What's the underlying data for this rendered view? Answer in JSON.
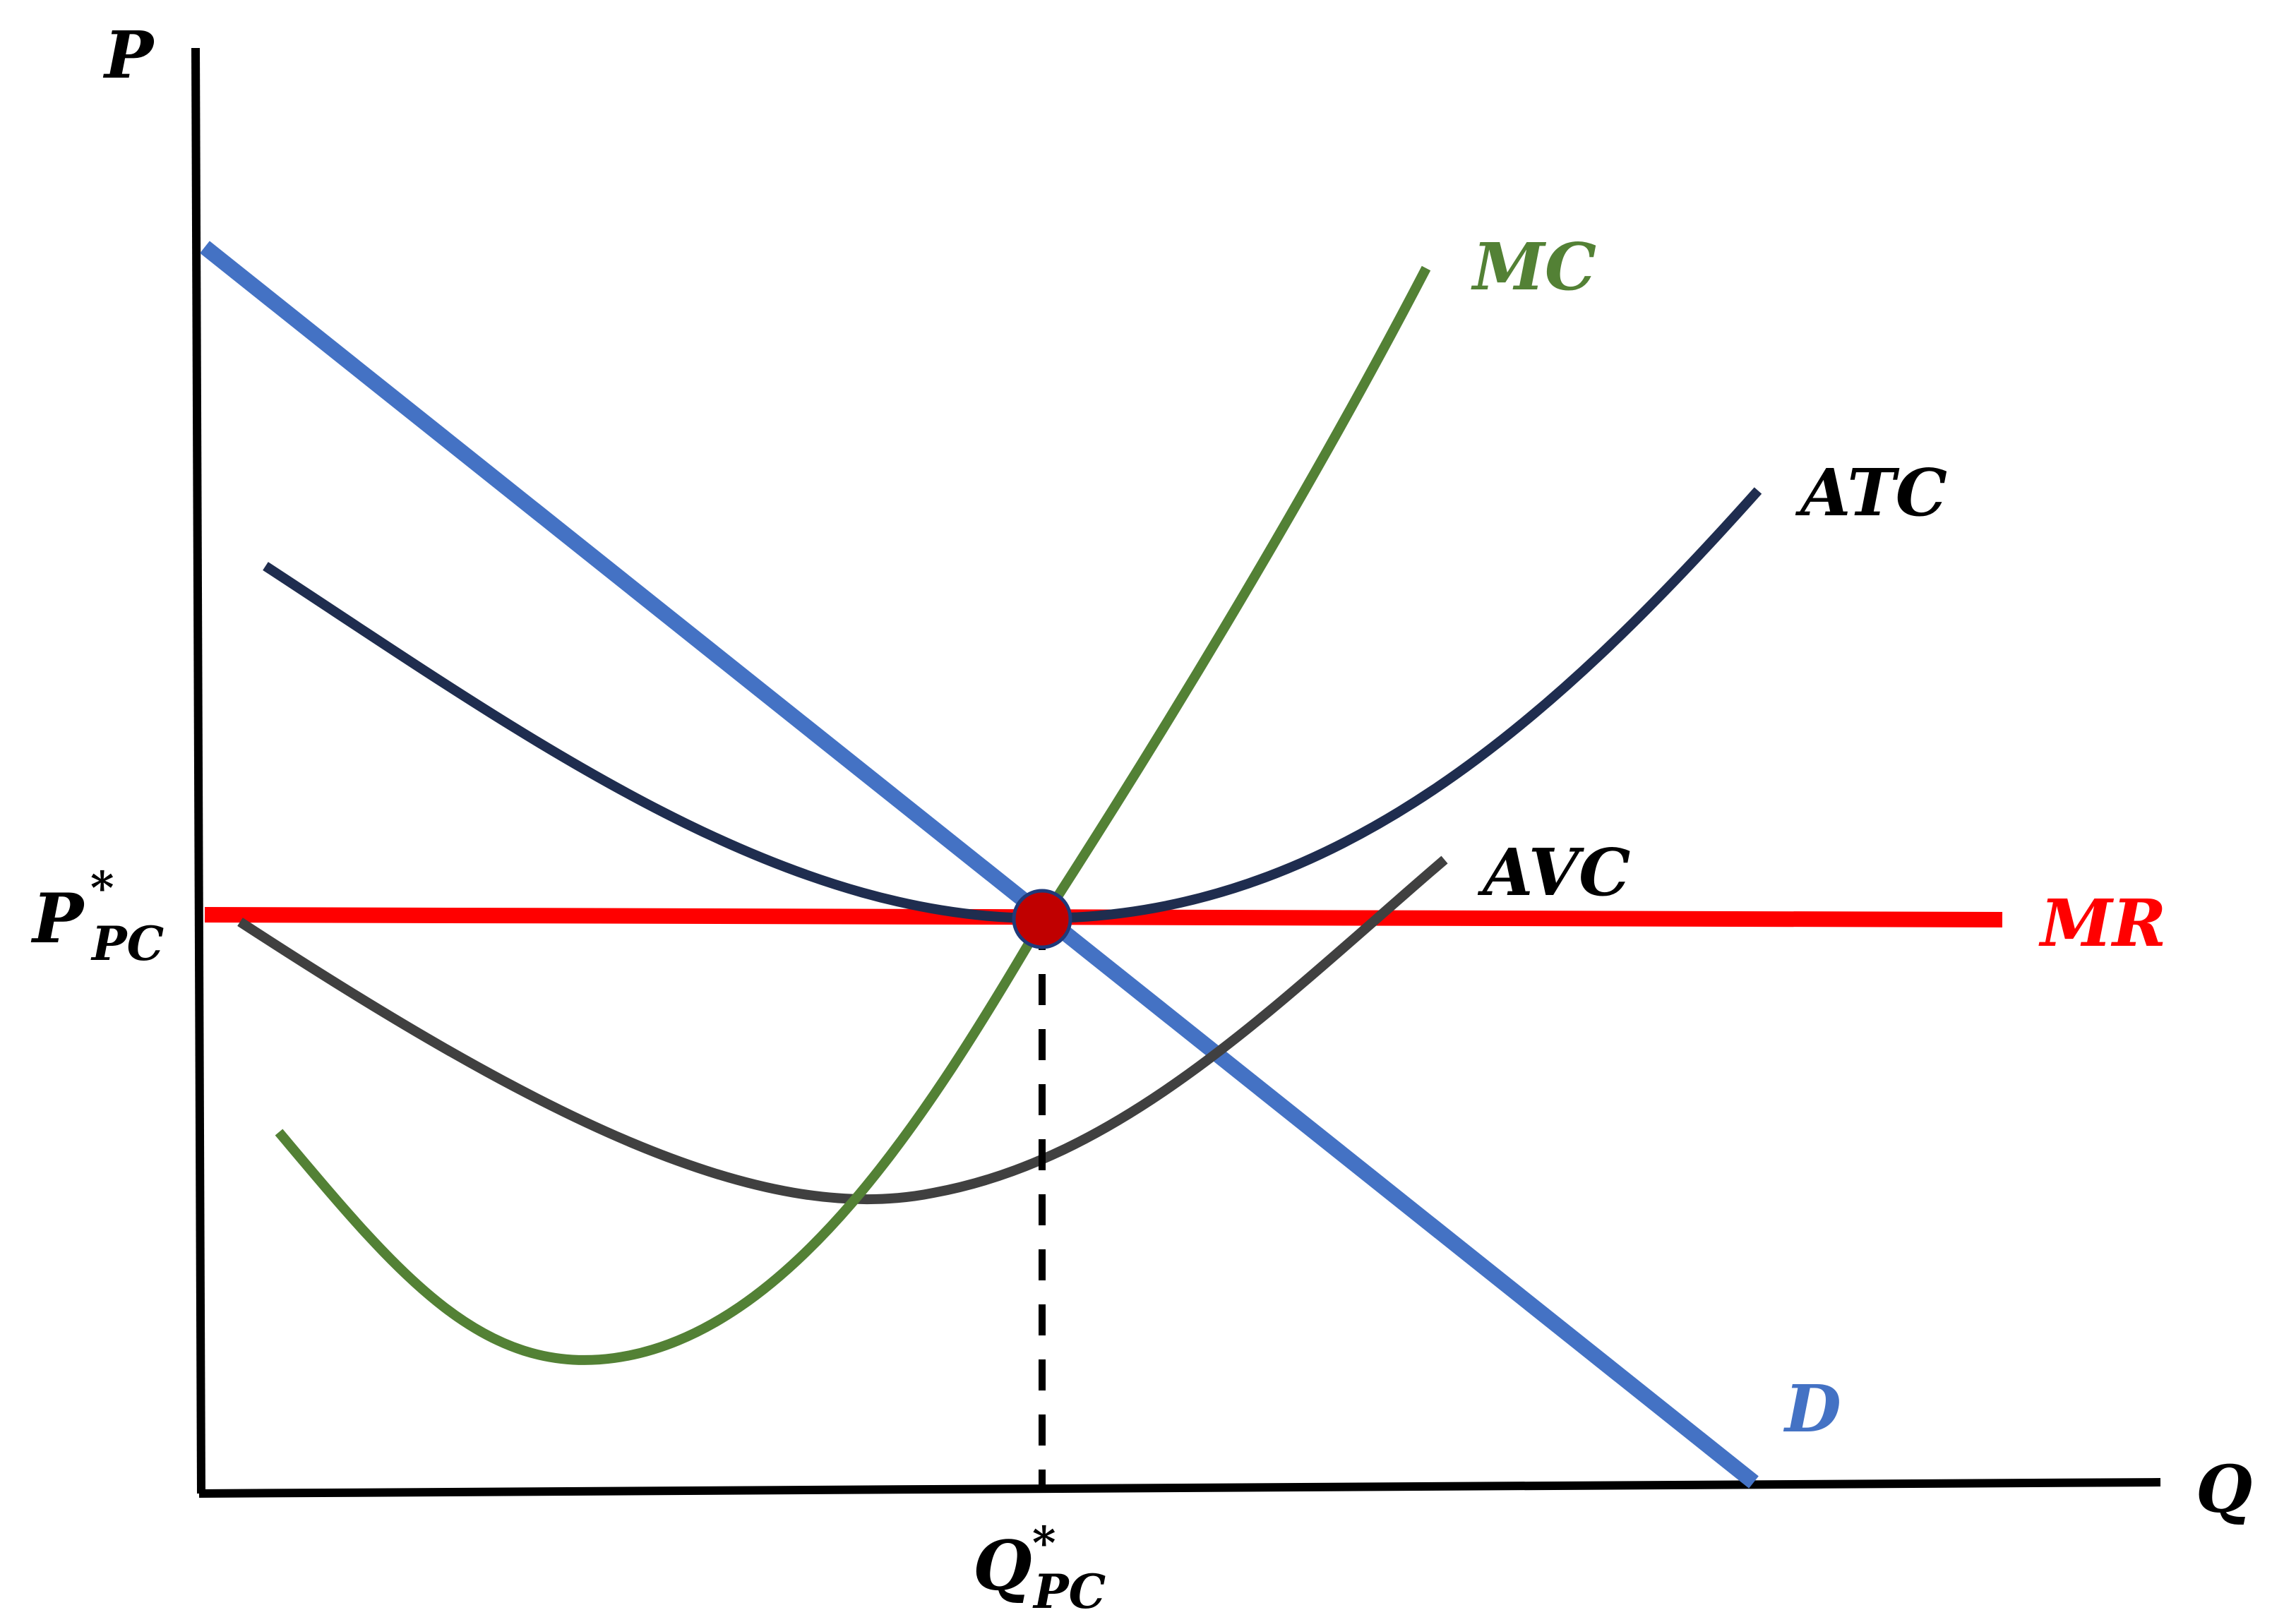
{
  "axes": {
    "y_label": "P",
    "x_label": "Q"
  },
  "curves": {
    "mc": {
      "label": "MC",
      "color": "#538135"
    },
    "atc": {
      "label": "ATC",
      "color": "#1f2d4f"
    },
    "avc": {
      "label": "AVC",
      "color": "#404040"
    },
    "mr": {
      "label": "MR",
      "color": "#ff0000"
    },
    "demand": {
      "label": "D",
      "color": "#4472c4"
    }
  },
  "equilibrium": {
    "price_label": {
      "main": "P",
      "sup": "*",
      "sub": "PC"
    },
    "quantity_label": {
      "main": "Q",
      "sup": "*",
      "sub": "PC"
    },
    "point_color": "#c00000"
  }
}
